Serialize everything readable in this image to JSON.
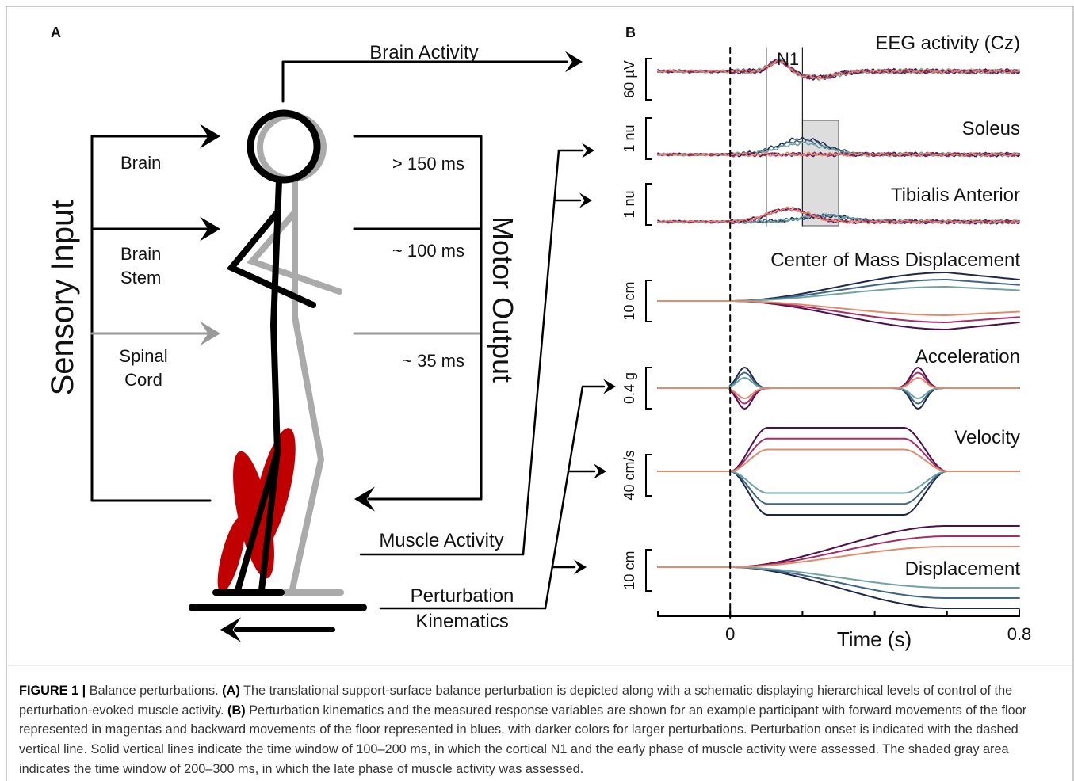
{
  "panel_a": {
    "label": "A",
    "brain_activity": "Brain Activity",
    "sensory_input": "Sensory Input",
    "motor_output": "Motor Output",
    "levels": [
      {
        "name": [
          "Brain"
        ],
        "latency": "> 150 ms"
      },
      {
        "name": [
          "Brain",
          "Stem"
        ],
        "latency": "~ 100 ms"
      },
      {
        "name": [
          "Spinal",
          "Cord"
        ],
        "latency": "~ 35 ms"
      }
    ],
    "muscle_activity": "Muscle Activity",
    "perturbation_kinematics": [
      "Perturbation",
      "Kinematics"
    ]
  },
  "panel_b": {
    "label": "B",
    "annotation": "N1",
    "traces": [
      {
        "title": "EEG activity (Cz)",
        "scale": "60 µV"
      },
      {
        "title": "Soleus",
        "scale": "1 nu"
      },
      {
        "title": "Tibialis Anterior",
        "scale": "1 nu"
      },
      {
        "title": "Center of Mass Displacement",
        "scale": "10 cm"
      },
      {
        "title": "Acceleration",
        "scale": "0.4 g"
      },
      {
        "title": "Velocity",
        "scale": "40 cm/s"
      },
      {
        "title": "Displacement",
        "scale": "10 cm"
      }
    ],
    "x_axis": {
      "label": "Time (s)",
      "lim": [
        -0.2,
        0.8
      ],
      "ticks": [
        0,
        0.8
      ]
    }
  },
  "caption": {
    "figure_label": "FIGURE 1 |",
    "title": "Balance perturbations.",
    "parts": [
      {
        "label": "(A)",
        "text": "The translational support-surface balance perturbation is depicted along with a schematic displaying hierarchical levels of control of the perturbation-evoked muscle activity."
      },
      {
        "label": "(B)",
        "text": "Perturbation kinematics and the measured response variables are shown for an example participant with forward movements of the floor represented in magentas and backward movements of the floor represented in blues, with darker colors for larger perturbations. Perturbation onset is indicated with the dashed vertical line. Solid vertical lines indicate the time window of 100–200 ms, in which the cortical N1 and the early phase of muscle activity were assessed. The shaded gray area indicates the time window of 200–300 ms, in which the late phase of muscle activity was assessed."
      }
    ]
  }
}
